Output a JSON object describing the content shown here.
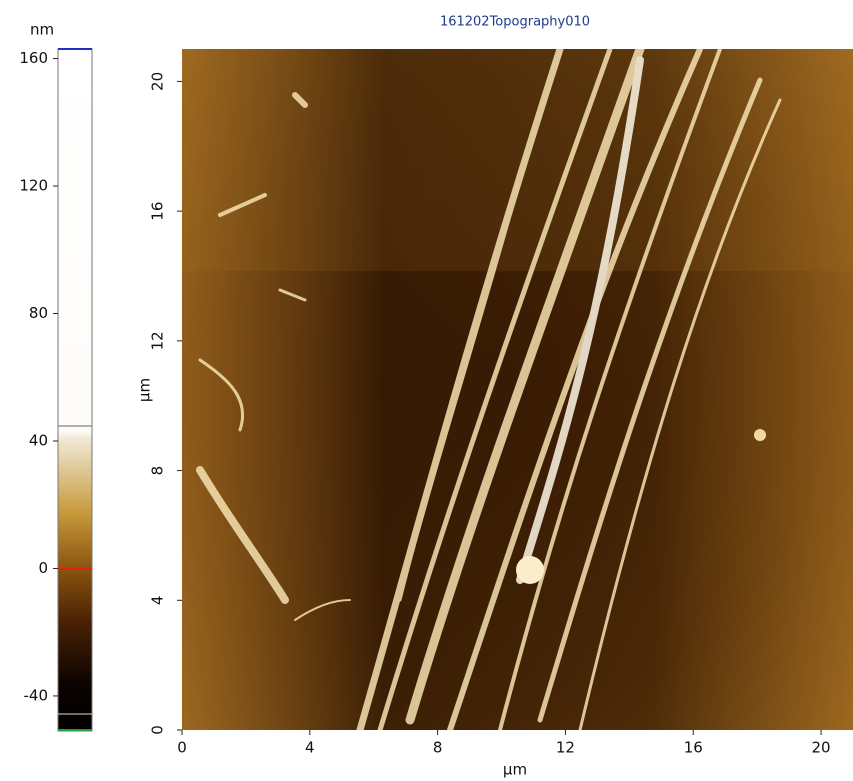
{
  "chart_data": {
    "type": "image",
    "title": "161202Topography010",
    "x_label": "µm",
    "y_label": "µm",
    "xlim": [
      0,
      21
    ],
    "ylim": [
      0,
      21
    ],
    "xticks": [
      0,
      4,
      8,
      12,
      16,
      20
    ],
    "yticks": [
      0,
      4,
      8,
      12,
      16,
      20
    ],
    "colorbar": {
      "label": "nm",
      "lim": [
        -51,
        163
      ],
      "ticks": [
        -40,
        0,
        40,
        80,
        120,
        160
      ]
    }
  }
}
